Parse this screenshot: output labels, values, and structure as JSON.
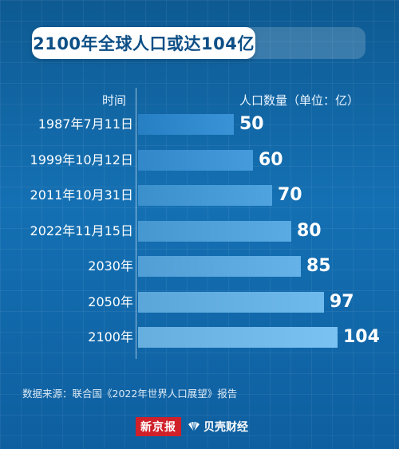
{
  "title": "2100年全球人口或达104亿",
  "column_headers": {
    "time": "时间",
    "population": "人口数量（单位：亿）"
  },
  "chart_data": {
    "type": "bar",
    "orientation": "horizontal",
    "title": "2100年全球人口或达104亿",
    "xlabel": "人口数量（单位：亿）",
    "ylabel": "时间",
    "categories": [
      "1987年7月11日",
      "1999年10月12日",
      "2011年10月31日",
      "2022年11月15日",
      "2030年",
      "2050年",
      "2100年"
    ],
    "values": [
      50,
      60,
      70,
      80,
      85,
      97,
      104
    ],
    "value_labels": [
      "50",
      "60",
      "70",
      "80",
      "85",
      "97",
      "104"
    ],
    "xlim": [
      0,
      104
    ],
    "grid": false,
    "legend": "none"
  },
  "source": "数据来源：联合国《2022年世界人口展望》报告",
  "logos": {
    "xinjingbao": "新京报",
    "beike": "贝壳财经"
  },
  "colors": {
    "background": "#1168a8",
    "bar_start": "#3a93d6",
    "bar_end": "#6fb8ee",
    "title_text": "#0d4f86"
  }
}
